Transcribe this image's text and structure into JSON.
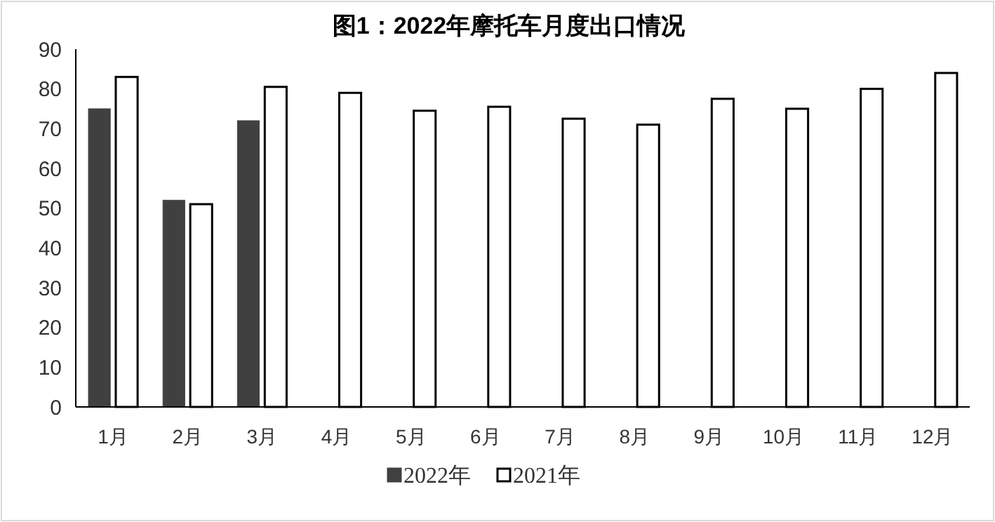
{
  "chart_data": {
    "type": "bar",
    "title": "图1：2022年摩托车月度出口情况",
    "categories": [
      "1月",
      "2月",
      "3月",
      "4月",
      "5月",
      "6月",
      "7月",
      "8月",
      "9月",
      "10月",
      "11月",
      "12月"
    ],
    "series": [
      {
        "name": "2022年",
        "color": "#404040",
        "values": [
          75,
          52,
          72,
          null,
          null,
          null,
          null,
          null,
          null,
          null,
          null,
          null
        ]
      },
      {
        "name": "2021年",
        "color": "#ffffff",
        "values": [
          83,
          51,
          80.5,
          79,
          74.5,
          75.5,
          72.5,
          71,
          77.5,
          75,
          80,
          84
        ]
      }
    ],
    "ylim": [
      0,
      90
    ],
    "yticks": [
      0,
      10,
      20,
      30,
      40,
      50,
      60,
      70,
      80,
      90
    ],
    "grid": false,
    "legend": "bottom"
  }
}
